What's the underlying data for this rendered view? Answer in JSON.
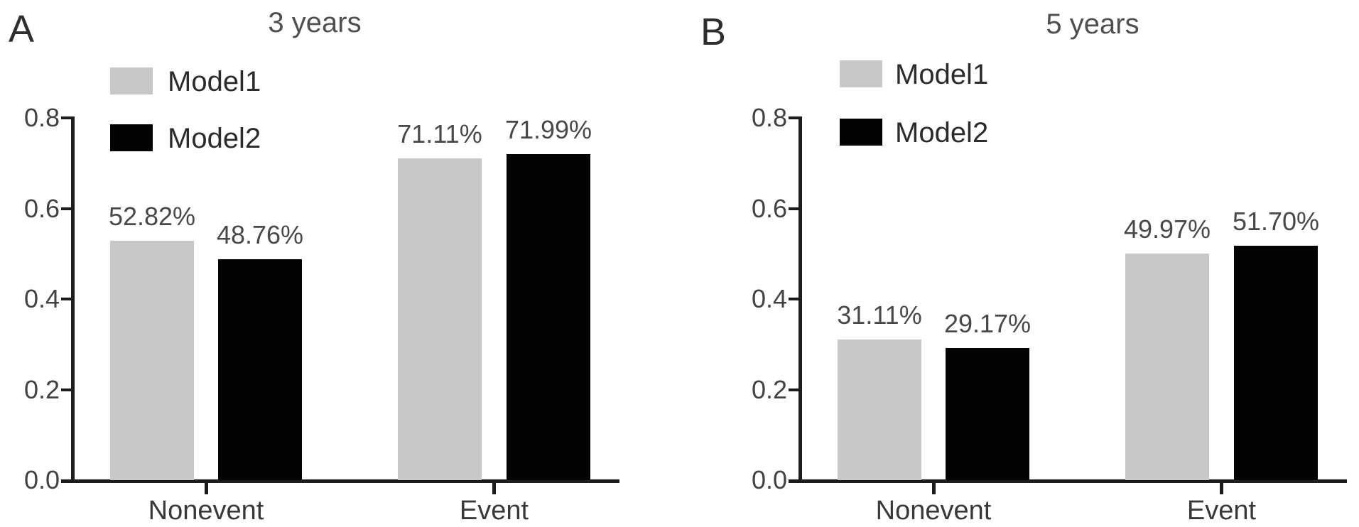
{
  "figure_background": "#ffffff",
  "chart_data": [
    {
      "type": "bar",
      "panel_letter": "A",
      "title": "3 years",
      "categories": [
        "Nonevent",
        "Event"
      ],
      "series": [
        {
          "name": "Model1",
          "color": "#c8c8c9",
          "values": [
            0.5282,
            0.7111
          ],
          "value_labels": [
            "52.82%",
            "71.11%"
          ]
        },
        {
          "name": "Model2",
          "color": "#030303",
          "values": [
            0.4876,
            0.7199
          ],
          "value_labels": [
            "48.76%",
            "71.99%"
          ]
        }
      ],
      "ylim": [
        0.0,
        0.8
      ],
      "y_ticks": [
        0.8,
        0.6,
        0.4,
        0.2,
        0.0
      ],
      "y_tick_labels": [
        "0.8",
        "0.6",
        "0.4",
        "0.2",
        "0.0"
      ],
      "xlabel": "",
      "ylabel": "",
      "grid": false,
      "legend_position": "top-left",
      "legend_entries": [
        "Model1",
        "Model2"
      ]
    },
    {
      "type": "bar",
      "panel_letter": "B",
      "title": "5 years",
      "categories": [
        "Nonevent",
        "Event"
      ],
      "series": [
        {
          "name": "Model1",
          "color": "#c8c8c9",
          "values": [
            0.3111,
            0.4997
          ],
          "value_labels": [
            "31.11%",
            "49.97%"
          ]
        },
        {
          "name": "Model2",
          "color": "#030303",
          "values": [
            0.2917,
            0.517
          ],
          "value_labels": [
            "29.17%",
            "51.70%"
          ]
        }
      ],
      "ylim": [
        0.0,
        0.8
      ],
      "y_ticks": [
        0.8,
        0.6,
        0.4,
        0.2,
        0.0
      ],
      "y_tick_labels": [
        "0.8",
        "0.6",
        "0.4",
        "0.2",
        "0.0"
      ],
      "xlabel": "",
      "ylabel": "",
      "grid": false,
      "legend_position": "top-left",
      "legend_entries": [
        "Model1",
        "Model2"
      ]
    }
  ]
}
